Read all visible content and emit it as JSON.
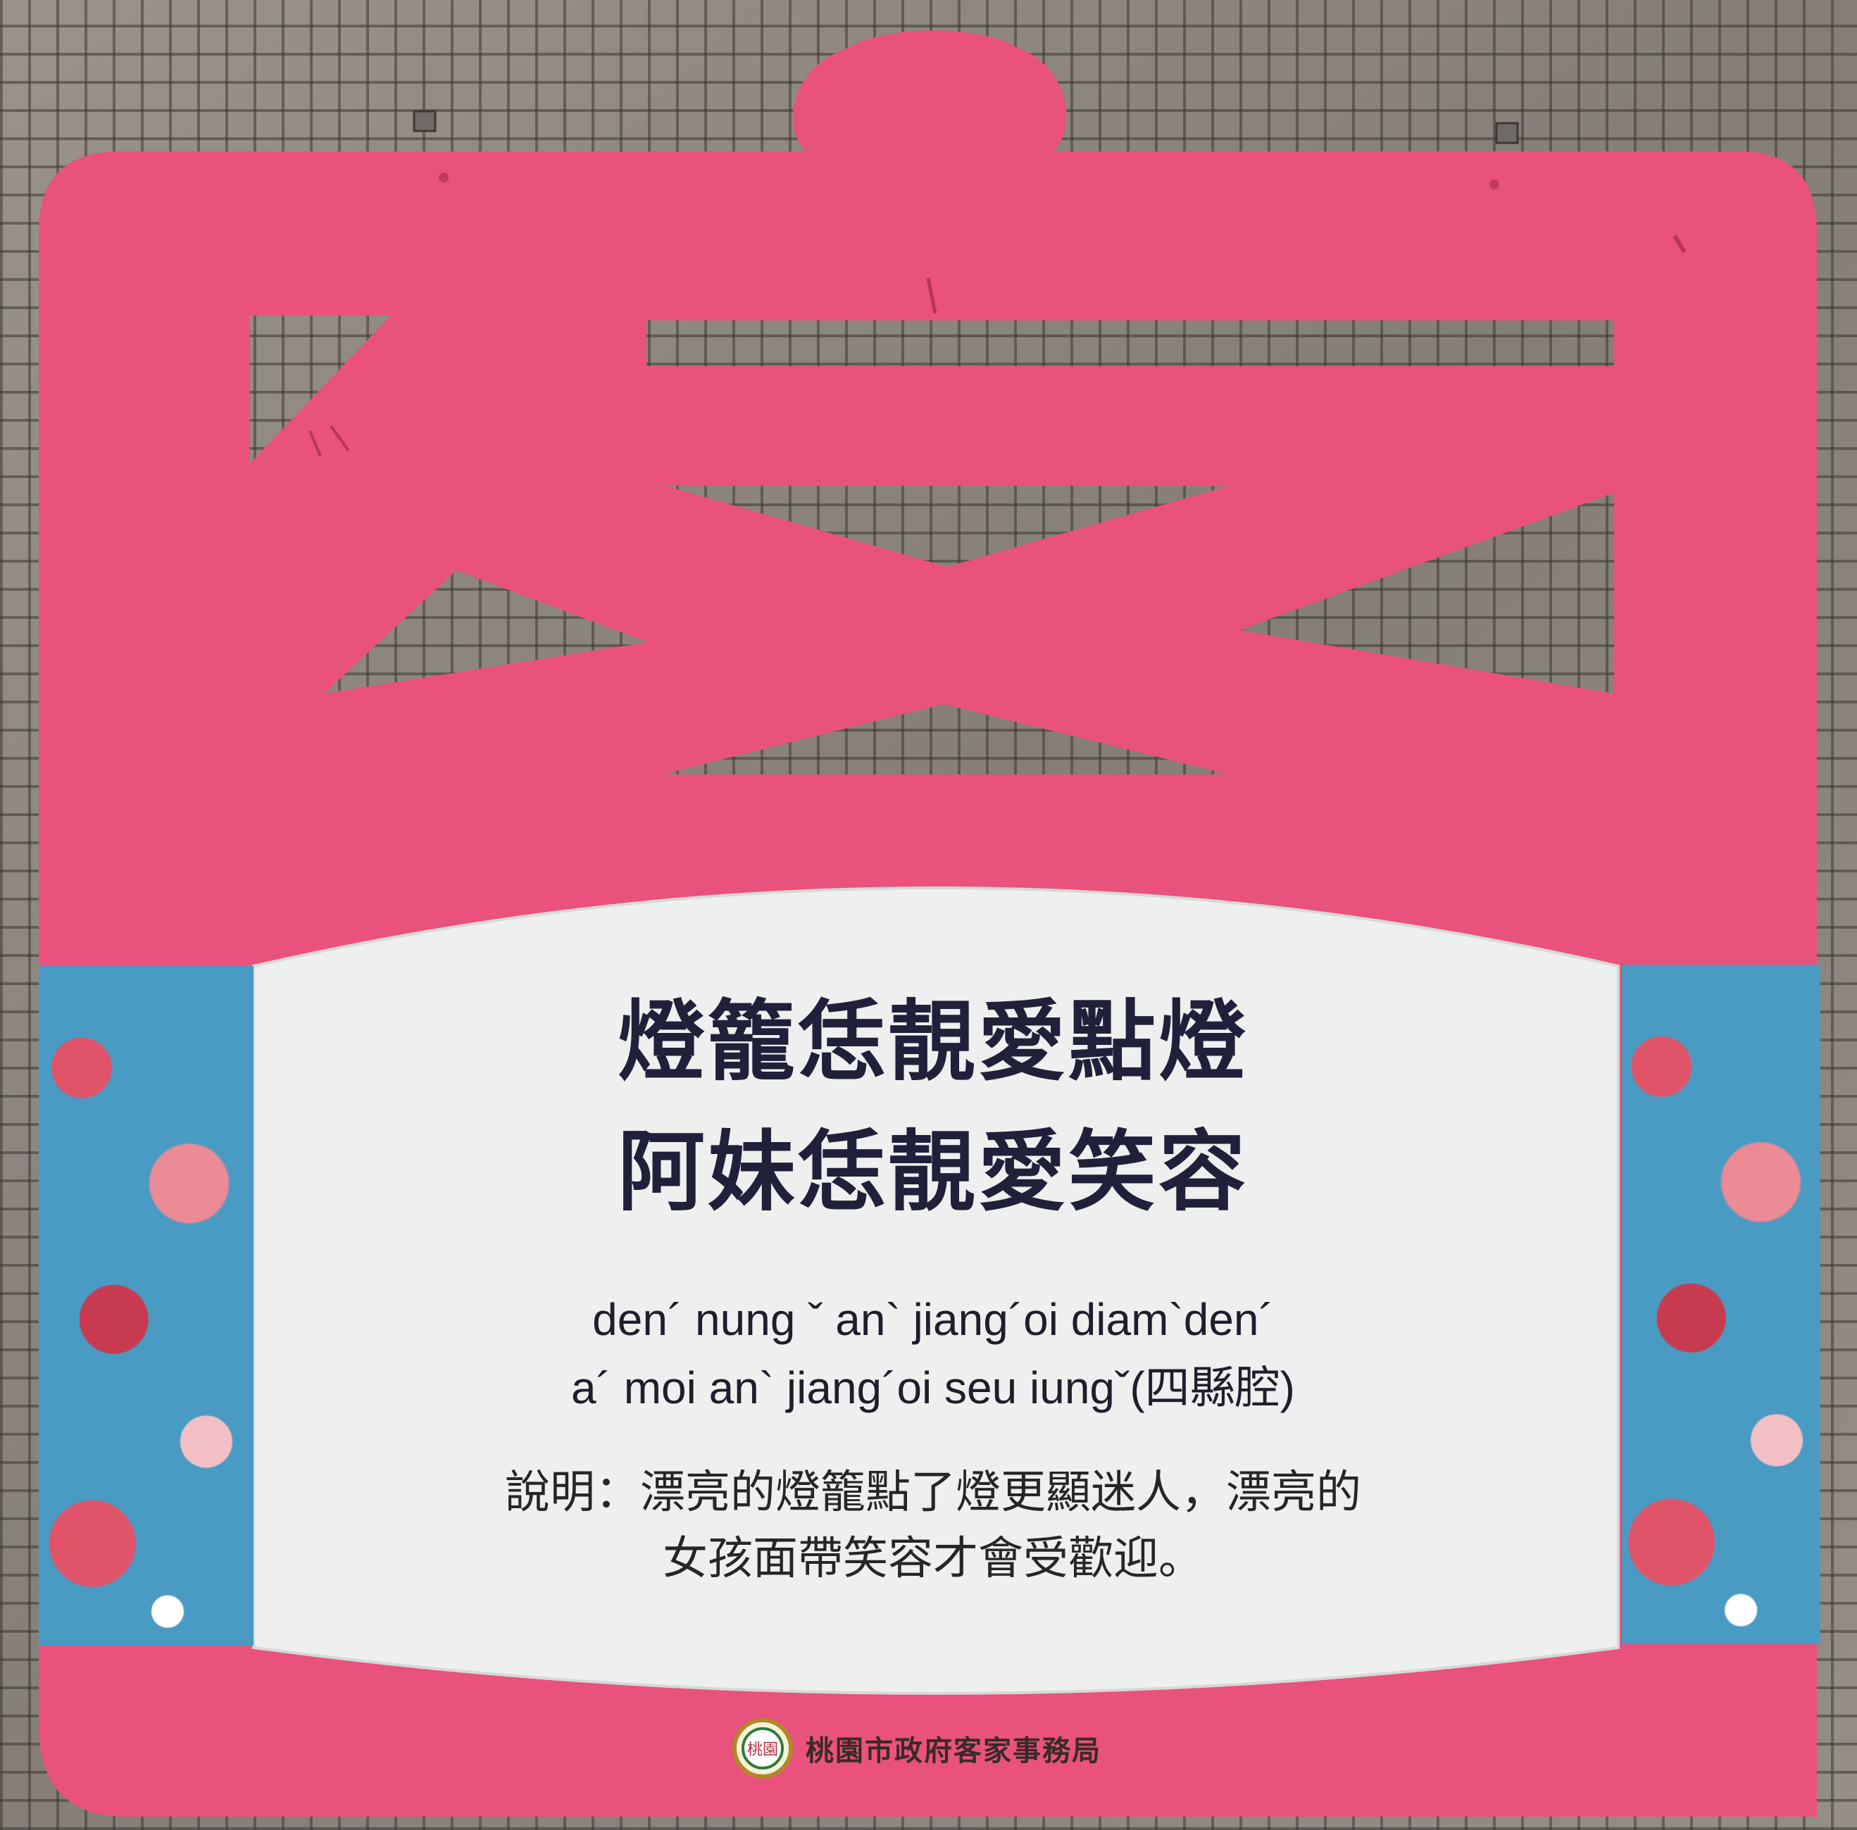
{
  "sign": {
    "colors": {
      "board": "#e9527c",
      "card": "#eef0ef",
      "floral": "#4a9bc3"
    },
    "heading_lines": [
      "燈籠恁靚愛點燈",
      "阿妹恁靚愛笑容"
    ],
    "romanization_lines": [
      "den´ nung ˇ an` jiang´oi diam`den´",
      "a´ moi  an` jiang´oi seu iungˇ(四縣腔)"
    ],
    "description_lines": [
      "說明：漂亮的燈籠點了燈更顯迷人，漂亮的",
      "女孩面帶笑容才會受歡迎。"
    ],
    "footer": {
      "emblem_text": "桃園",
      "publisher": "桃園市政府客家事務局"
    }
  }
}
